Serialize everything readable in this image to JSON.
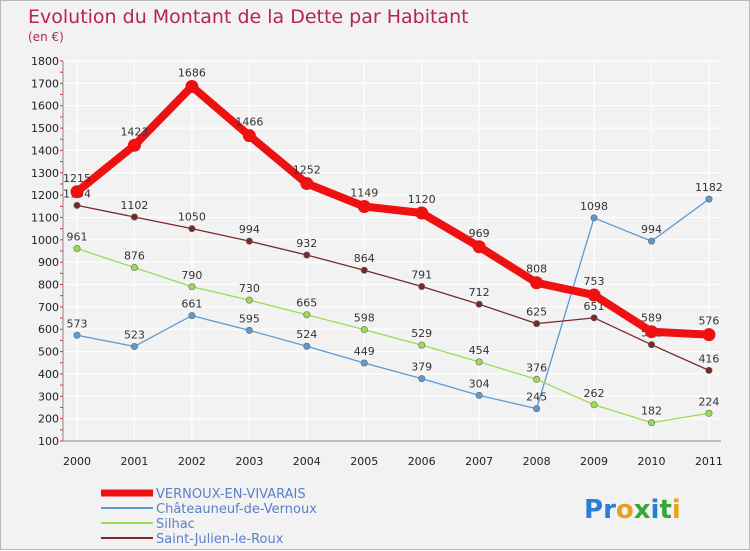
{
  "chart_data": {
    "type": "line",
    "title": "Evolution du Montant de la Dette par Habitant",
    "subtitle": "(en €)",
    "categories": [
      "2000",
      "2001",
      "2002",
      "2003",
      "2004",
      "2005",
      "2006",
      "2007",
      "2008",
      "2009",
      "2010",
      "2011"
    ],
    "ylim": [
      100,
      1800
    ],
    "yticks": [
      100,
      200,
      300,
      400,
      500,
      600,
      700,
      800,
      900,
      1000,
      1100,
      1200,
      1300,
      1400,
      1500,
      1600,
      1700,
      1800
    ],
    "grid": true,
    "legend_position": "bottom-left",
    "series": [
      {
        "name": "VERNOUX-EN-VIVARAIS",
        "color": "#ee1111",
        "emphasis": true,
        "values": [
          1215,
          1423,
          1686,
          1466,
          1252,
          1149,
          1120,
          969,
          808,
          753,
          589,
          576
        ],
        "labels": [
          "1215",
          "1423",
          "1686",
          "1466",
          "1252",
          "1149",
          "1120",
          "969",
          "808",
          "753",
          "589",
          "576"
        ]
      },
      {
        "name": "Châteauneuf-de-Vernoux",
        "color": "#5b9bd5",
        "emphasis": false,
        "values": [
          573,
          523,
          661,
          595,
          524,
          449,
          379,
          304,
          245,
          1098,
          994,
          1182
        ],
        "labels": [
          "573",
          "523",
          "661",
          "595",
          "524",
          "449",
          "379",
          "304",
          "245",
          "1098",
          "994",
          "1182"
        ]
      },
      {
        "name": "Silhac",
        "color": "#99dd55",
        "emphasis": false,
        "values": [
          961,
          876,
          790,
          730,
          665,
          598,
          529,
          454,
          376,
          262,
          182,
          224
        ],
        "labels": [
          "961",
          "876",
          "790",
          "730",
          "665",
          "598",
          "529",
          "454",
          "376",
          "262",
          "182",
          "224"
        ]
      },
      {
        "name": "Saint-Julien-le-Roux",
        "color": "#7a2a2a",
        "emphasis": false,
        "values": [
          1154,
          1102,
          1050,
          994,
          932,
          864,
          791,
          712,
          625,
          651,
          531,
          416
        ],
        "labels": [
          "1154",
          "1102",
          "1050",
          "994",
          "932",
          "864",
          "791",
          "712",
          "625",
          "651",
          "531",
          "416"
        ]
      }
    ]
  },
  "logo": {
    "text": "Proxiti",
    "letter_colors": [
      "#2a7fd4",
      "#2a7fd4",
      "#e8a020",
      "#3aa63a",
      "#2a7fd4",
      "#3aa63a",
      "#e8a020"
    ]
  }
}
